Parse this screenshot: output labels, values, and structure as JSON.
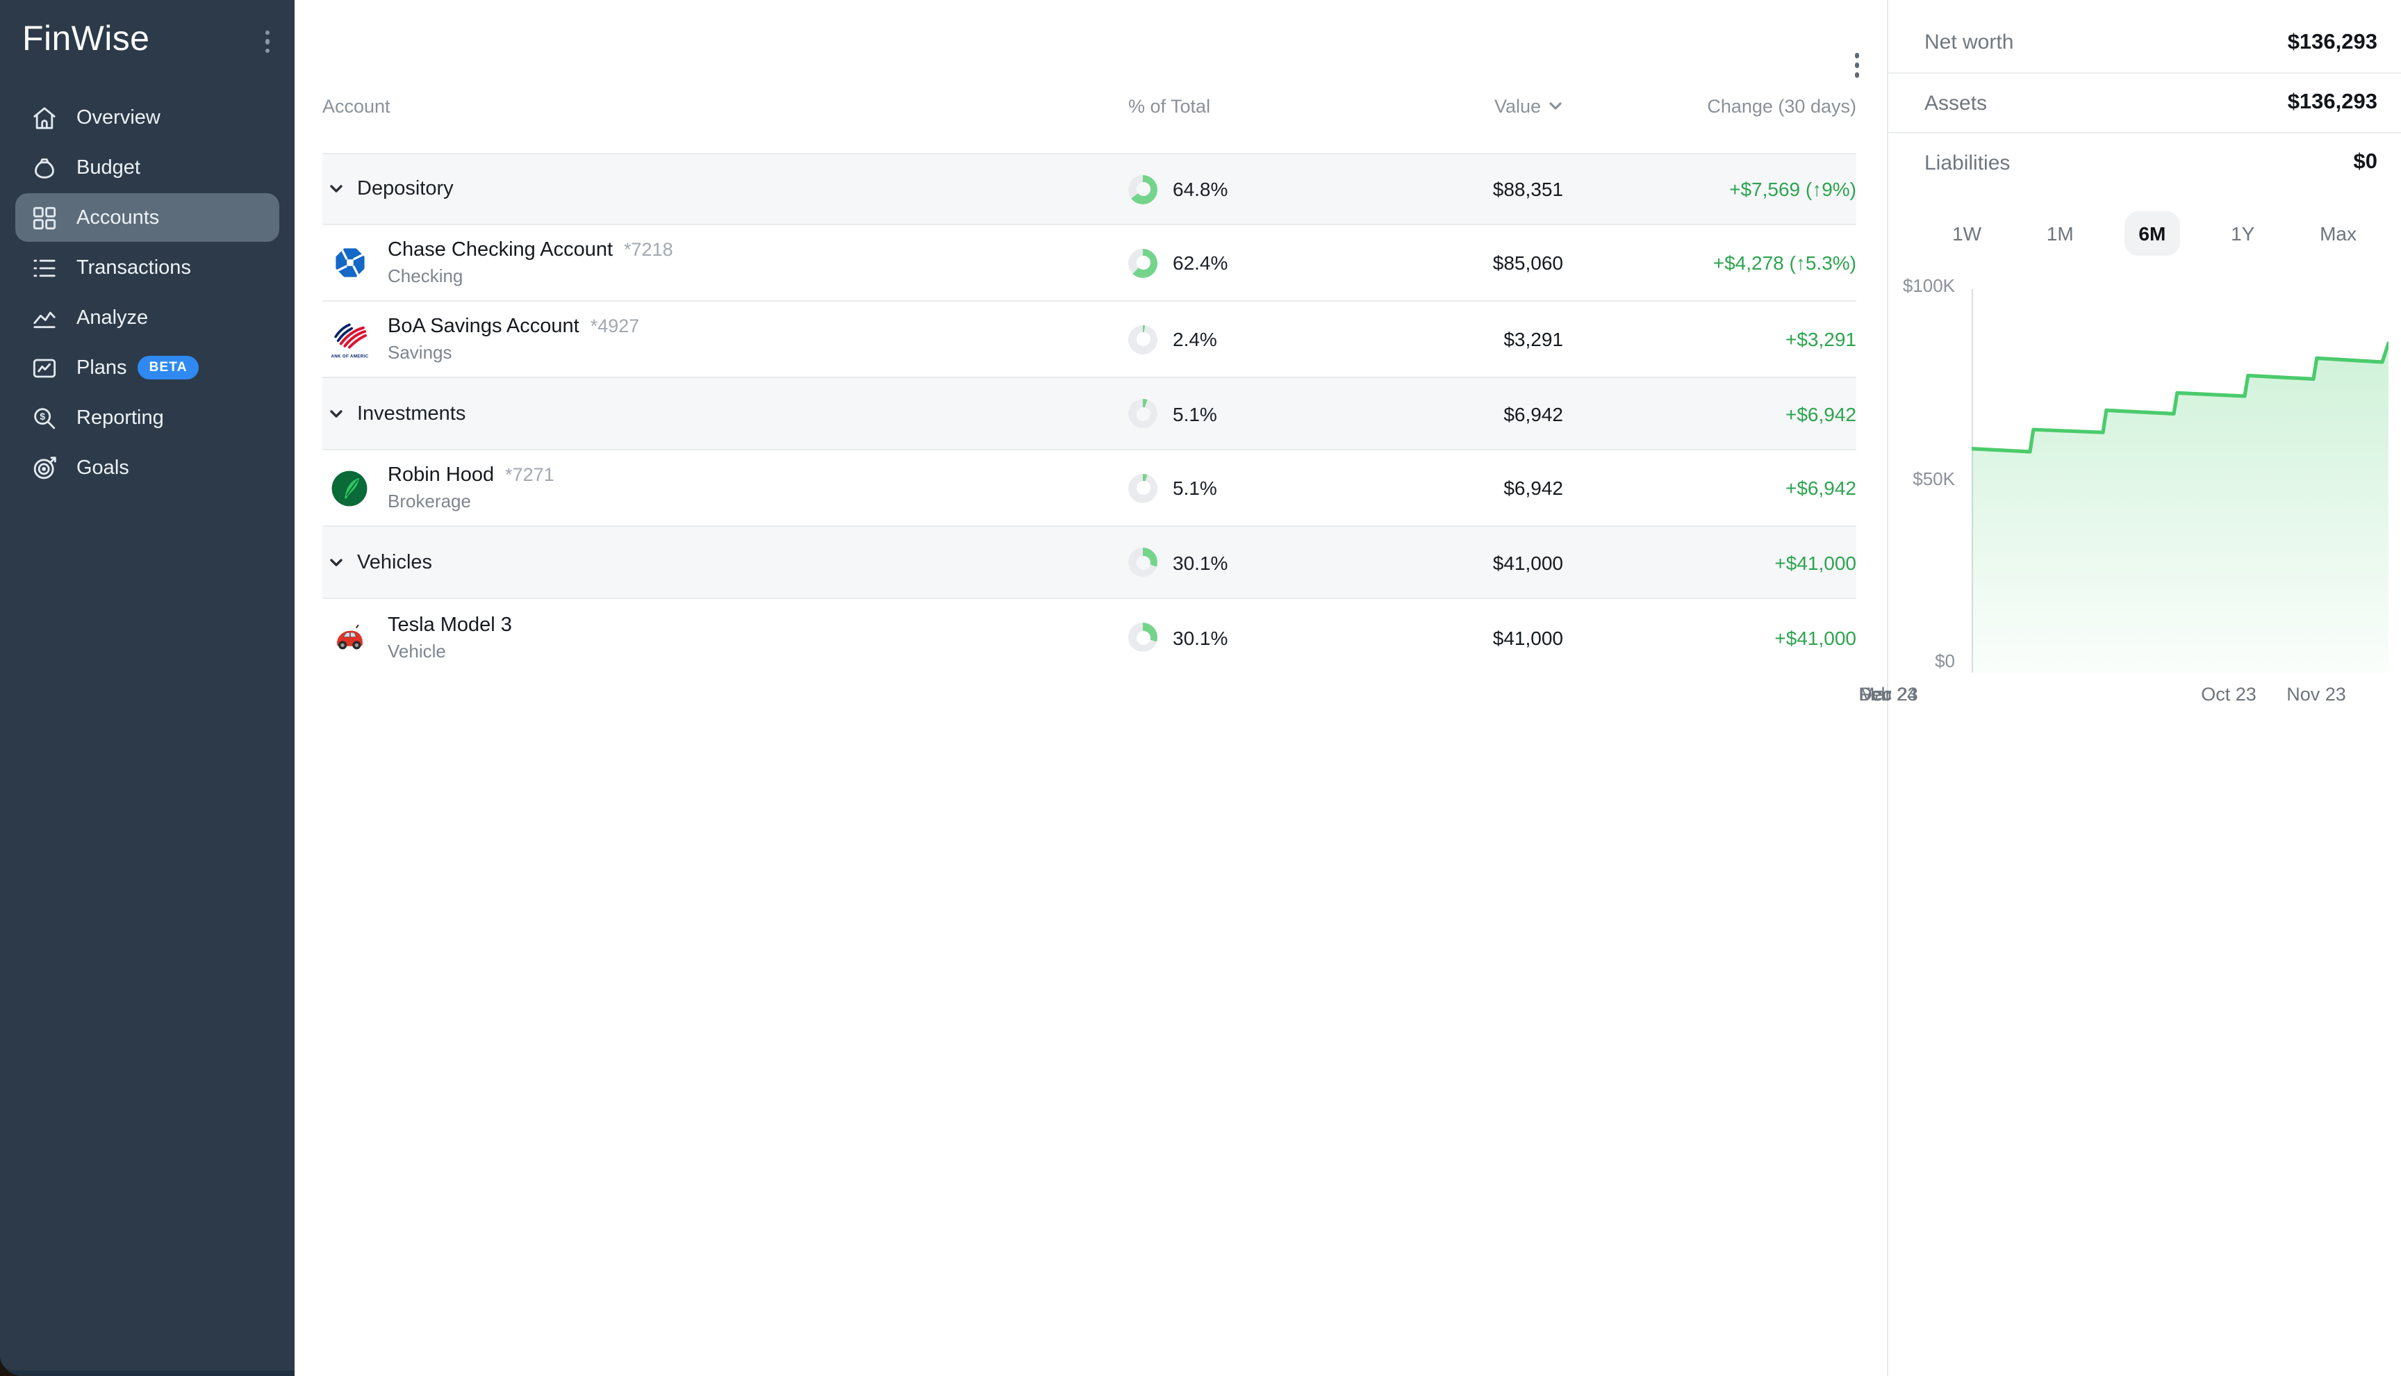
{
  "app": {
    "title": "FinWise"
  },
  "colors": {
    "green_text": "#2DA450",
    "chart_line": "#4BCB6C",
    "chart_fill": "#69D587",
    "donut_green": "#74D48C",
    "donut_track": "#E9EBEE",
    "beta_blue": "#2F89F1",
    "sidebar_bg": "#2C3A49",
    "sidebar_active": "#5D6C7B",
    "chase_blue": "#1468C6",
    "boa_red": "#DC1431",
    "boa_blue": "#012169",
    "robinhood_green": "#0A6A38",
    "robinhood_feather": "#2FC45F",
    "tesla_red": "#E23327"
  },
  "sidebar": {
    "items": [
      {
        "label": "Overview",
        "icon": "home",
        "active": false
      },
      {
        "label": "Budget",
        "icon": "money-bag",
        "active": false
      },
      {
        "label": "Accounts",
        "icon": "grid",
        "active": true
      },
      {
        "label": "Transactions",
        "icon": "list",
        "active": false
      },
      {
        "label": "Analyze",
        "icon": "area-chart",
        "active": false
      },
      {
        "label": "Plans",
        "icon": "image-chart",
        "active": false,
        "badge": "BETA"
      },
      {
        "label": "Reporting",
        "icon": "search-dollar",
        "active": false
      },
      {
        "label": "Goals",
        "icon": "target",
        "active": false
      }
    ]
  },
  "table": {
    "headers": {
      "account": "Account",
      "pct": "% of Total",
      "value": "Value",
      "change": "Change (30 days)"
    },
    "rows": [
      {
        "kind": "group",
        "label": "Depository",
        "pct": 64.8,
        "pct_label": "64.8%",
        "value": "$88,351",
        "change": "+$7,569 (↑9%)"
      },
      {
        "kind": "account",
        "icon": "chase",
        "name": "Chase Checking Account",
        "mask": "*7218",
        "subtitle": "Checking",
        "pct": 62.4,
        "pct_label": "62.4%",
        "value": "$85,060",
        "change": "+$4,278 (↑5.3%)"
      },
      {
        "kind": "account",
        "icon": "boa",
        "name": "BoA Savings Account",
        "mask": "*4927",
        "subtitle": "Savings",
        "pct": 2.4,
        "pct_label": "2.4%",
        "value": "$3,291",
        "change": "+$3,291"
      },
      {
        "kind": "group",
        "label": "Investments",
        "pct": 5.1,
        "pct_label": "5.1%",
        "value": "$6,942",
        "change": "+$6,942"
      },
      {
        "kind": "account",
        "icon": "robinhood",
        "name": "Robin Hood",
        "mask": "*7271",
        "subtitle": "Brokerage",
        "pct": 5.1,
        "pct_label": "5.1%",
        "value": "$6,942",
        "change": "+$6,942"
      },
      {
        "kind": "group",
        "label": "Vehicles",
        "pct": 30.1,
        "pct_label": "30.1%",
        "value": "$41,000",
        "change": "+$41,000"
      },
      {
        "kind": "account",
        "icon": "tesla",
        "name": "Tesla Model 3",
        "mask": "",
        "subtitle": "Vehicle",
        "pct": 30.1,
        "pct_label": "30.1%",
        "value": "$41,000",
        "change": "+$41,000"
      }
    ]
  },
  "summary": {
    "rows": [
      {
        "label": "Net worth",
        "value": "$136,293"
      },
      {
        "label": "Assets",
        "value": "$136,293"
      },
      {
        "label": "Liabilities",
        "value": "$0"
      }
    ]
  },
  "range_tabs": [
    {
      "label": "1W",
      "active": false
    },
    {
      "label": "1M",
      "active": false
    },
    {
      "label": "6M",
      "active": true
    },
    {
      "label": "1Y",
      "active": false
    },
    {
      "label": "Max",
      "active": false
    }
  ],
  "chart_data": {
    "type": "area",
    "series": [
      {
        "name": "Net worth",
        "points": [
          [
            0.0,
            58000
          ],
          [
            0.14,
            57200
          ],
          [
            0.148,
            62900
          ],
          [
            0.315,
            62200
          ],
          [
            0.323,
            67900
          ],
          [
            0.485,
            67000
          ],
          [
            0.493,
            72400
          ],
          [
            0.655,
            71600
          ],
          [
            0.663,
            76900
          ],
          [
            0.82,
            76000
          ],
          [
            0.828,
            81400
          ],
          [
            0.985,
            80400
          ],
          [
            1.0,
            85300
          ]
        ]
      }
    ],
    "ylim": [
      0,
      100000
    ],
    "y_ticks": [
      "$100K",
      "$50K",
      "$0"
    ],
    "x_labels": [
      "Oct 23",
      "Nov 23",
      "Dec 23",
      "Feb 24",
      "Mar 24"
    ],
    "legend": "none",
    "grid": "off"
  }
}
